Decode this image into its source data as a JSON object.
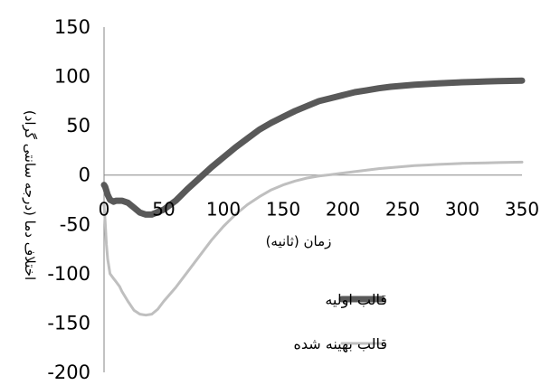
{
  "chart_data": {
    "type": "line",
    "xlabel": "زمان (ثانیه)",
    "ylabel": "اختلاف دما (درجه سانتی گراد)",
    "xlim": [
      0,
      350
    ],
    "ylim": [
      -200,
      150
    ],
    "x_ticks": [
      "0",
      "50",
      "100",
      "150",
      "200",
      "250",
      "300",
      "350"
    ],
    "y_ticks": [
      "150",
      "100",
      "50",
      "0",
      "-50",
      "-100",
      "-150",
      "-200"
    ],
    "legend_position": "right",
    "series": [
      {
        "name": "قالب اولیه",
        "color": "#595959",
        "x": [
          0,
          1,
          3,
          5,
          8,
          10,
          15,
          20,
          25,
          30,
          35,
          40,
          50,
          60,
          70,
          80,
          90,
          100,
          110,
          120,
          130,
          140,
          150,
          160,
          170,
          180,
          190,
          200,
          210,
          220,
          230,
          240,
          250,
          260,
          270,
          280,
          290,
          300,
          310,
          320,
          330,
          340,
          350
        ],
        "y": [
          -10,
          -12,
          -20,
          -25,
          -27,
          -26,
          -26,
          -28,
          -33,
          -38,
          -40,
          -40,
          -35,
          -26,
          -14,
          -3,
          8,
          18,
          28,
          37,
          46,
          53,
          59,
          65,
          70,
          75,
          78,
          81,
          84,
          86,
          88,
          89.5,
          90.5,
          91.5,
          92.3,
          93,
          93.6,
          94.1,
          94.5,
          94.9,
          95.2,
          95.5,
          95.8
        ]
      },
      {
        "name": "قالب بهینه شده",
        "color": "#bfbfbf",
        "x": [
          0,
          1,
          2,
          3,
          5,
          8,
          10,
          13,
          15,
          20,
          25,
          30,
          35,
          40,
          45,
          50,
          60,
          70,
          80,
          90,
          100,
          110,
          120,
          130,
          140,
          150,
          160,
          170,
          180,
          190,
          200,
          210,
          220,
          230,
          240,
          250,
          260,
          270,
          280,
          290,
          300,
          310,
          320,
          330,
          340,
          350
        ],
        "y": [
          -30,
          -48,
          -70,
          -85,
          -100,
          -105,
          -108,
          -113,
          -118,
          -128,
          -137,
          -141,
          -142,
          -141,
          -136,
          -128,
          -114,
          -98,
          -82,
          -66,
          -52,
          -40,
          -30,
          -22,
          -15,
          -10,
          -6,
          -3,
          -1,
          0.5,
          2,
          3.5,
          5,
          6.5,
          7.5,
          8.5,
          9.5,
          10.2,
          10.8,
          11.3,
          11.8,
          12.1,
          12.4,
          12.7,
          12.9,
          13.1
        ]
      }
    ]
  }
}
